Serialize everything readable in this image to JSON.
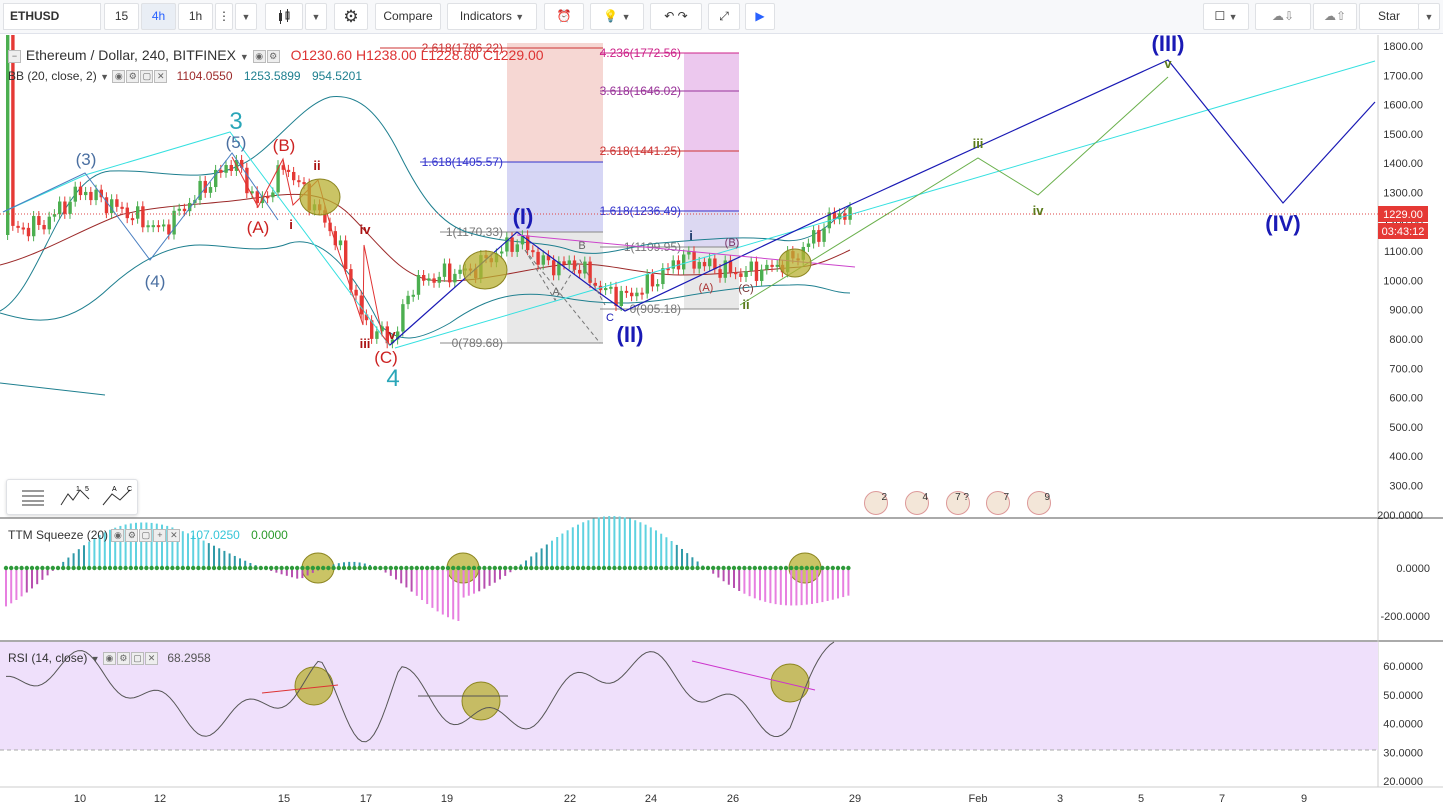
{
  "toolbar": {
    "symbol": "ETHUSD",
    "intervals": [
      "15",
      "4h",
      "1h"
    ],
    "active_interval": "4h",
    "compare_label": "Compare",
    "indicators_label": "Indicators",
    "star_label": "Star"
  },
  "main_legend": {
    "title": "Ethereum / Dollar, 240, BITFINEX",
    "open": "O1230.60",
    "high": "H1238.00",
    "low": "L1228.80",
    "close": "C1229.00",
    "bb_label": "BB (20, close, 2)",
    "bb_basis": "1104.0550",
    "bb_upper": "1253.5899",
    "bb_lower": "954.5201"
  },
  "ttm_legend": {
    "label": "TTM Squeeze (20)",
    "value1": "107.0250",
    "value2": "0.0000"
  },
  "rsi_legend": {
    "label": "RSI (14, close)",
    "value": "68.2958"
  },
  "price_axis": {
    "labels": [
      "1800.00",
      "1700.00",
      "1600.00",
      "1500.00",
      "1400.00",
      "1300.00",
      "1200.00",
      "1100.00",
      "1000.00",
      "900.00",
      "800.00",
      "700.00",
      "600.00",
      "500.00",
      "400.00",
      "300.00",
      "200.0000"
    ],
    "current_price": "1229.00",
    "countdown": "03:43:12"
  },
  "ttm_axis": {
    "labels": [
      "0.0000",
      "-200.0000"
    ]
  },
  "rsi_axis": {
    "labels": [
      "60.0000",
      "50.0000",
      "40.0000",
      "30.0000",
      "20.0000"
    ]
  },
  "time_axis": {
    "labels": [
      "10",
      "12",
      "15",
      "17",
      "19",
      "22",
      "24",
      "26",
      "29",
      "Feb",
      "3",
      "5",
      "7",
      "9"
    ]
  },
  "fib_left": {
    "l2618": "2.618(1786.22)",
    "l1618": "1.618(1405.57)",
    "l1": "1(1170.33)",
    "l0": "0(789.68)"
  },
  "fib_right": {
    "l4236": "4.236(1772.56)",
    "l3618": "3.618(1646.02)",
    "l2618": "2.618(1441.25)",
    "l1618": "1.618(1236.49)",
    "l1": "1(1109.95)",
    "l0": "0(905.18)"
  },
  "wave_labels": {
    "big3": "3",
    "big4": "4",
    "p3": "(3)",
    "p4": "(4)",
    "p5": "(5)",
    "pA": "(A)",
    "pB": "(B)",
    "pC": "(C)",
    "r_ii": "ii",
    "r_i": "i",
    "r_iv": "iv",
    "r_iii": "iii",
    "r_v": "v",
    "wI": "(I)",
    "wII": "(II)",
    "wIII": "(III)",
    "wIV": "(IV)",
    "g_iii": "iii",
    "g_iv": "iv",
    "g_v": "v",
    "g_ii": "ii",
    "s_i": "i",
    "s_A": "(A)",
    "s_B": "(B)",
    "s_C": "(C)",
    "abc_A": "A",
    "abc_B": "B",
    "abc_C": "C"
  },
  "event_badges": [
    "2",
    "4",
    "7 ?",
    "7",
    "9"
  ],
  "colors": {
    "candle_up": "#4caf50",
    "candle_down": "#e53935",
    "bb_band": "#1e7f8f",
    "bb_basis": "#9c2a2a",
    "wave_blue": "#1a1ab5",
    "cyan_line": "#35e0e0",
    "rsi_bg": "#efe0fb",
    "ttm_pos": "#5fd2e0",
    "ttm_neg": "#e77fe0",
    "highlight": "#b8b032"
  }
}
